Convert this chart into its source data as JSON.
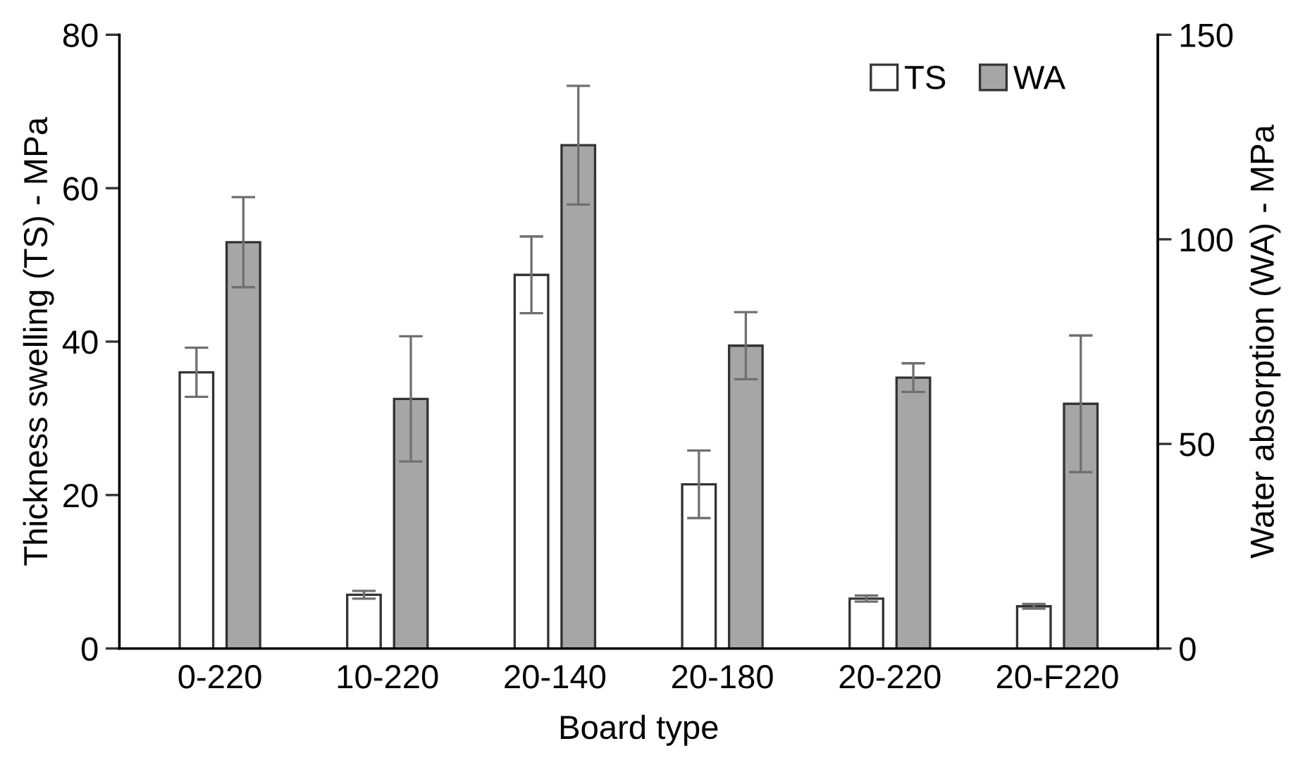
{
  "chart_data": {
    "type": "bar",
    "xlabel": "Board type",
    "ylabel": "Thickness swelling (TS) - MPa",
    "y2label": "Water absorption (WA) - MPa",
    "categories": [
      "0-220",
      "10-220",
      "20-140",
      "20-180",
      "20-220",
      "20-F220"
    ],
    "series": [
      {
        "name": "TS",
        "color": "#ffffff",
        "values": [
          36.0,
          7.0,
          48.7,
          21.4,
          6.5,
          5.5
        ],
        "errors": [
          3.2,
          0.5,
          5.0,
          4.4,
          0.4,
          0.3
        ]
      },
      {
        "name": "WA",
        "color": "#a6a6a6",
        "axis": "y2",
        "values": [
          99.3,
          61.0,
          123.0,
          74.0,
          66.2,
          59.8
        ],
        "errors": [
          11,
          15.3,
          14.5,
          8.2,
          3.5,
          16.7
        ]
      }
    ],
    "ylim": [
      0,
      80
    ],
    "yticks": [
      0,
      20,
      40,
      60,
      80
    ],
    "y2lim": [
      0,
      150
    ],
    "y2ticks": [
      0,
      50,
      100,
      150
    ],
    "legend": "top right",
    "grid": false
  }
}
